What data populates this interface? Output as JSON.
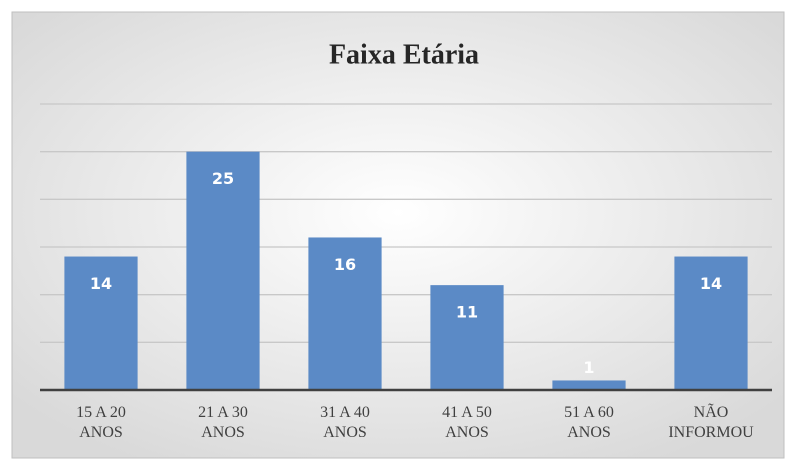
{
  "chart_data": {
    "type": "bar",
    "title": "Faixa Etária",
    "categories": [
      "15 A 20\nANOS",
      "21 A 30\nANOS",
      "31 A 40\nANOS",
      "41 A 50\nANOS",
      "51 A 60\nANOS",
      "NÃO\nINFORMOU"
    ],
    "values": [
      14,
      25,
      16,
      11,
      1,
      14
    ],
    "color": "#5b8ac6",
    "ylim": [
      0,
      30
    ],
    "yticks": [
      0,
      5,
      10,
      15,
      20,
      25,
      30
    ],
    "grid": true
  }
}
